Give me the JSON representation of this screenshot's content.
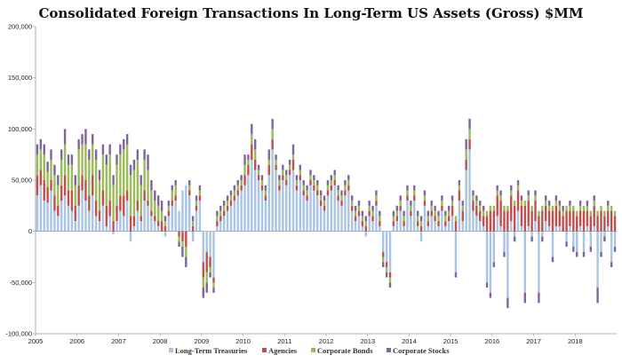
{
  "chart_data": {
    "type": "bar",
    "stacked": true,
    "title": "Consolidated Foreign Transactions In Long-Term US Assets (Gross) $MM",
    "ylim": [
      -100000,
      200000
    ],
    "y_ticks": [
      "-100,000",
      "-50,000",
      "0",
      "50,000",
      "100,000",
      "150,000",
      "200,000"
    ],
    "x_ticks": [
      "2005",
      "2006",
      "2007",
      "2008",
      "2009",
      "2010",
      "2011",
      "2012",
      "2013",
      "2014",
      "2015",
      "2016",
      "2017",
      "2018"
    ],
    "x_start": "2005-01",
    "x_end": "2018-08",
    "grid": false,
    "legend_position": "bottom",
    "series": [
      {
        "name": "Long-Term Treasuries",
        "color": "#a9c4e4",
        "values": [
          35,
          45,
          30,
          28,
          40,
          20,
          15,
          30,
          35,
          25,
          20,
          10,
          25,
          40,
          30,
          20,
          35,
          15,
          10,
          25,
          5,
          15,
          -3,
          10,
          20,
          15,
          30,
          -10,
          5,
          20,
          10,
          30,
          25,
          15,
          10,
          5,
          0,
          -5,
          15,
          25,
          30,
          20,
          40,
          45,
          35,
          -10,
          20,
          30,
          -30,
          -20,
          -25,
          -45,
          5,
          10,
          15,
          20,
          25,
          30,
          35,
          40,
          45,
          55,
          70,
          60,
          50,
          40,
          30,
          55,
          80,
          60,
          40,
          50,
          45,
          55,
          60,
          40,
          50,
          35,
          30,
          45,
          40,
          35,
          25,
          20,
          35,
          40,
          45,
          30,
          25,
          35,
          40,
          20,
          10,
          15,
          5,
          -5,
          15,
          10,
          25,
          5,
          -20,
          -30,
          -40,
          5,
          10,
          20,
          5,
          30,
          15,
          30,
          5,
          -10,
          25,
          5,
          15,
          10,
          5,
          20,
          5,
          10,
          15,
          -40,
          30,
          10,
          60,
          80,
          20,
          15,
          10,
          5,
          -50,
          -60,
          -30,
          15,
          5,
          -20,
          -65,
          10,
          -5,
          20,
          5,
          -60,
          5,
          -5,
          10,
          -60,
          -5,
          10,
          5,
          -25,
          5,
          5,
          0,
          -10,
          5,
          -15,
          -20,
          5,
          -20,
          5,
          -15,
          5,
          -55,
          -20,
          -5,
          5,
          -30,
          -15
        ]
      },
      {
        "name": "Agencies",
        "color": "#c0504d",
        "values": [
          20,
          15,
          20,
          15,
          10,
          15,
          10,
          15,
          20,
          15,
          20,
          15,
          20,
          15,
          20,
          15,
          20,
          15,
          10,
          15,
          20,
          15,
          10,
          15,
          15,
          20,
          10,
          15,
          10,
          10,
          5,
          10,
          5,
          5,
          5,
          5,
          10,
          5,
          5,
          5,
          5,
          -5,
          -10,
          -15,
          5,
          5,
          5,
          5,
          -15,
          -20,
          -10,
          -5,
          5,
          5,
          5,
          5,
          5,
          5,
          5,
          5,
          10,
          10,
          15,
          10,
          5,
          5,
          5,
          10,
          10,
          5,
          5,
          5,
          5,
          5,
          10,
          5,
          5,
          5,
          5,
          5,
          5,
          5,
          5,
          5,
          5,
          5,
          5,
          5,
          5,
          5,
          5,
          5,
          5,
          5,
          5,
          5,
          5,
          5,
          5,
          5,
          -5,
          -5,
          -5,
          5,
          5,
          5,
          5,
          5,
          5,
          5,
          5,
          5,
          5,
          5,
          5,
          5,
          5,
          5,
          5,
          5,
          10,
          10,
          10,
          10,
          10,
          10,
          10,
          10,
          10,
          10,
          15,
          20,
          20,
          20,
          25,
          20,
          20,
          25,
          25,
          20,
          20,
          25,
          25,
          20,
          20,
          15,
          20,
          15,
          15,
          20,
          20,
          15,
          15,
          20,
          15,
          20,
          15,
          15,
          20,
          15,
          15,
          20,
          15,
          20,
          15,
          15,
          20,
          15
        ]
      },
      {
        "name": "Corporate Bonds",
        "color": "#9bbb59",
        "values": [
          20,
          20,
          25,
          15,
          20,
          20,
          20,
          25,
          30,
          25,
          25,
          20,
          35,
          30,
          35,
          35,
          30,
          40,
          30,
          35,
          40,
          45,
          35,
          40,
          40,
          45,
          45,
          40,
          45,
          40,
          30,
          30,
          30,
          20,
          15,
          15,
          10,
          5,
          5,
          10,
          10,
          -5,
          -5,
          -10,
          5,
          5,
          5,
          5,
          -10,
          -10,
          -5,
          -5,
          5,
          5,
          5,
          5,
          5,
          5,
          5,
          5,
          10,
          5,
          10,
          10,
          5,
          5,
          5,
          5,
          10,
          5,
          5,
          5,
          5,
          5,
          5,
          5,
          5,
          5,
          5,
          5,
          5,
          5,
          5,
          5,
          5,
          5,
          5,
          5,
          5,
          5,
          5,
          5,
          5,
          5,
          5,
          5,
          5,
          5,
          5,
          5,
          -5,
          -5,
          -5,
          5,
          5,
          5,
          5,
          5,
          5,
          5,
          5,
          5,
          5,
          5,
          5,
          5,
          5,
          5,
          5,
          5,
          5,
          5,
          5,
          5,
          10,
          10,
          5,
          5,
          5,
          5,
          5,
          5,
          5,
          5,
          5,
          5,
          5,
          5,
          5,
          5,
          5,
          5,
          5,
          5,
          5,
          5,
          5,
          5,
          5,
          5,
          5,
          5,
          5,
          5,
          5,
          5,
          5,
          5,
          5,
          5,
          5,
          5,
          5,
          5,
          5,
          5,
          5,
          5
        ]
      },
      {
        "name": "Corporate Stocks",
        "color": "#8064a2",
        "values": [
          10,
          10,
          10,
          10,
          10,
          10,
          10,
          10,
          15,
          10,
          10,
          10,
          10,
          10,
          15,
          10,
          10,
          10,
          10,
          10,
          10,
          10,
          10,
          10,
          10,
          10,
          10,
          10,
          10,
          10,
          10,
          10,
          15,
          10,
          10,
          10,
          10,
          5,
          5,
          5,
          5,
          -5,
          -10,
          -10,
          5,
          5,
          5,
          5,
          -10,
          -10,
          -5,
          -5,
          5,
          5,
          5,
          5,
          5,
          5,
          5,
          5,
          10,
          5,
          10,
          10,
          5,
          5,
          5,
          10,
          10,
          5,
          5,
          5,
          5,
          5,
          10,
          5,
          5,
          5,
          5,
          5,
          5,
          5,
          5,
          5,
          5,
          5,
          5,
          5,
          5,
          5,
          5,
          5,
          5,
          5,
          5,
          5,
          5,
          5,
          5,
          5,
          -5,
          -5,
          -5,
          5,
          5,
          5,
          5,
          5,
          5,
          5,
          5,
          5,
          5,
          5,
          5,
          5,
          5,
          5,
          5,
          5,
          5,
          -5,
          5,
          5,
          10,
          10,
          5,
          5,
          5,
          5,
          -5,
          -5,
          -5,
          5,
          5,
          -5,
          -10,
          5,
          -5,
          5,
          5,
          -10,
          5,
          -5,
          5,
          -10,
          -5,
          5,
          5,
          -5,
          5,
          5,
          5,
          -5,
          5,
          -5,
          -5,
          5,
          -5,
          5,
          -5,
          5,
          -15,
          -5,
          -5,
          5,
          -5,
          -5
        ]
      }
    ]
  }
}
